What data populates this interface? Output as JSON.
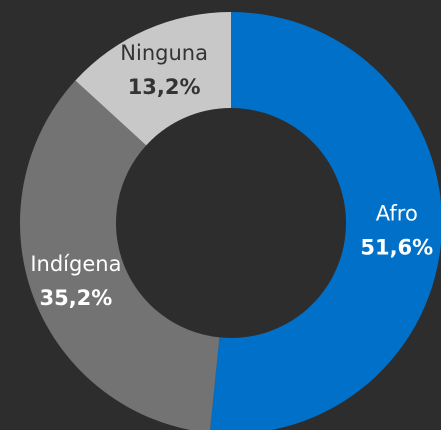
{
  "chart_data": {
    "type": "pie",
    "categories": [
      "Afro",
      "Indígena",
      "Ninguna"
    ],
    "values": [
      51.6,
      35.2,
      13.2
    ],
    "value_labels": [
      "51,6%",
      "35,2%",
      "13,2%"
    ],
    "colors": [
      "#0070c8",
      "#737373",
      "#c8c8c8"
    ]
  }
}
